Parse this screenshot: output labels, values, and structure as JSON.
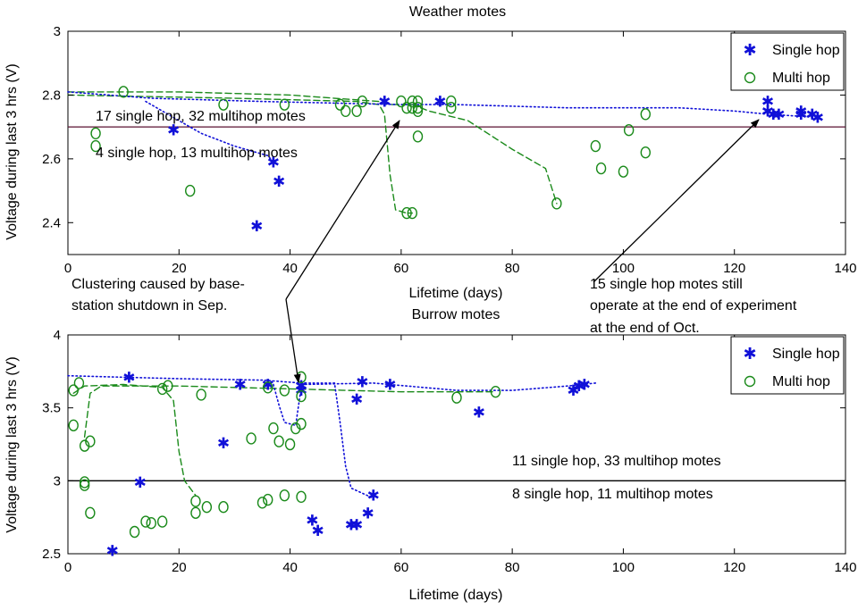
{
  "chart_data": [
    {
      "type": "scatter",
      "title": "Weather motes",
      "xlabel": "Lifetime (days)",
      "ylabel": "Voltage during last 3 hrs (V)",
      "xlim": [
        0,
        140
      ],
      "ylim": [
        2.3,
        3.0
      ],
      "xticks": [
        "0",
        "20",
        "40",
        "60",
        "80",
        "100",
        "120",
        "140"
      ],
      "yticks": [
        "2.4",
        "2.6",
        "2.8",
        "3"
      ],
      "threshold": 2.7,
      "legend": {
        "position": "top-right",
        "entries": [
          "Single hop",
          "Multi hop"
        ]
      },
      "series": [
        {
          "name": "Single hop",
          "marker": "star",
          "color": "#1010d8",
          "points": [
            [
              19,
              2.69
            ],
            [
              34,
              2.39
            ],
            [
              37,
              2.59
            ],
            [
              38,
              2.53
            ],
            [
              57,
              2.78
            ],
            [
              67,
              2.78
            ],
            [
              126,
              2.78
            ],
            [
              126,
              2.75
            ],
            [
              127,
              2.74
            ],
            [
              128,
              2.74
            ],
            [
              132,
              2.75
            ],
            [
              132,
              2.74
            ],
            [
              134,
              2.74
            ],
            [
              135,
              2.73
            ]
          ]
        },
        {
          "name": "Multi hop",
          "marker": "circle",
          "color": "#1a8a1a",
          "points": [
            [
              5,
              2.68
            ],
            [
              5,
              2.64
            ],
            [
              10,
              2.81
            ],
            [
              22,
              2.5
            ],
            [
              28,
              2.77
            ],
            [
              39,
              2.77
            ],
            [
              49,
              2.77
            ],
            [
              50,
              2.75
            ],
            [
              52,
              2.75
            ],
            [
              53,
              2.78
            ],
            [
              60,
              2.78
            ],
            [
              61,
              2.43
            ],
            [
              61,
              2.76
            ],
            [
              62,
              2.76
            ],
            [
              62,
              2.78
            ],
            [
              62,
              2.43
            ],
            [
              63,
              2.67
            ],
            [
              63,
              2.78
            ],
            [
              63,
              2.76
            ],
            [
              63,
              2.75
            ],
            [
              69,
              2.78
            ],
            [
              69,
              2.76
            ],
            [
              88,
              2.46
            ],
            [
              95,
              2.64
            ],
            [
              96,
              2.57
            ],
            [
              100,
              2.56
            ],
            [
              101,
              2.69
            ],
            [
              104,
              2.62
            ],
            [
              104,
              2.74
            ]
          ]
        }
      ],
      "traces": [
        {
          "style": "dash",
          "color": "#1a8a1a",
          "points": [
            [
              0,
              2.81
            ],
            [
              20,
              2.81
            ],
            [
              40,
              2.8
            ],
            [
              56,
              2.78
            ],
            [
              58,
              2.77
            ],
            [
              62,
              2.77
            ],
            [
              65,
              2.75
            ],
            [
              72,
              2.72
            ],
            [
              80,
              2.63
            ],
            [
              86,
              2.57
            ],
            [
              88,
              2.46
            ]
          ]
        },
        {
          "style": "dash",
          "color": "#1a8a1a",
          "points": [
            [
              0,
              2.8
            ],
            [
              30,
              2.79
            ],
            [
              52,
              2.78
            ],
            [
              56,
              2.77
            ],
            [
              57,
              2.74
            ],
            [
              58,
              2.55
            ],
            [
              59,
              2.44
            ],
            [
              61,
              2.43
            ],
            [
              62,
              2.43
            ]
          ]
        },
        {
          "style": "dot",
          "color": "#1010d8",
          "points": [
            [
              0,
              2.81
            ],
            [
              15,
              2.79
            ],
            [
              35,
              2.78
            ],
            [
              60,
              2.77
            ],
            [
              70,
              2.77
            ],
            [
              90,
              2.76
            ],
            [
              110,
              2.76
            ],
            [
              120,
              2.75
            ],
            [
              126,
              2.74
            ],
            [
              135,
              2.73
            ]
          ]
        },
        {
          "style": "dot",
          "color": "#1010d8",
          "points": [
            [
              14,
              2.78
            ],
            [
              18,
              2.74
            ],
            [
              24,
              2.68
            ],
            [
              30,
              2.64
            ],
            [
              36,
              2.61
            ],
            [
              37,
              2.59
            ]
          ]
        }
      ],
      "annotations": [
        {
          "text": "17 single hop, 32 multihop motes"
        },
        {
          "text": "4 single hop, 13 multihop motes"
        }
      ]
    },
    {
      "type": "scatter",
      "title": "Burrow motes",
      "xlabel": "Lifetime (days)",
      "ylabel": "Voltage during last 3 hrs (V)",
      "xlim": [
        0,
        140
      ],
      "ylim": [
        2.5,
        4.0
      ],
      "xticks": [
        "0",
        "20",
        "40",
        "60",
        "80",
        "100",
        "120",
        "140"
      ],
      "yticks": [
        "2.5",
        "3",
        "3.5",
        "4"
      ],
      "threshold": 3.0,
      "legend": {
        "position": "top-right",
        "entries": [
          "Single hop",
          "Multi hop"
        ]
      },
      "series": [
        {
          "name": "Single hop",
          "marker": "star",
          "color": "#1010d8",
          "points": [
            [
              8,
              2.52
            ],
            [
              11,
              3.71
            ],
            [
              13,
              2.99
            ],
            [
              28,
              3.26
            ],
            [
              31,
              3.66
            ],
            [
              36,
              3.66
            ],
            [
              42,
              3.65
            ],
            [
              42,
              3.62
            ],
            [
              44,
              2.73
            ],
            [
              45,
              2.66
            ],
            [
              51,
              2.7
            ],
            [
              52,
              2.7
            ],
            [
              52,
              3.56
            ],
            [
              53,
              3.68
            ],
            [
              54,
              2.78
            ],
            [
              55,
              2.9
            ],
            [
              58,
              3.66
            ],
            [
              74,
              3.47
            ],
            [
              91,
              3.62
            ],
            [
              92,
              3.65
            ],
            [
              93,
              3.66
            ]
          ]
        },
        {
          "name": "Multi hop",
          "marker": "circle",
          "color": "#1a8a1a",
          "points": [
            [
              1,
              3.38
            ],
            [
              1,
              3.62
            ],
            [
              2,
              3.67
            ],
            [
              3,
              3.24
            ],
            [
              3,
              2.99
            ],
            [
              3,
              2.97
            ],
            [
              4,
              3.27
            ],
            [
              4,
              2.78
            ],
            [
              12,
              2.65
            ],
            [
              14,
              2.72
            ],
            [
              15,
              2.71
            ],
            [
              17,
              2.72
            ],
            [
              17,
              3.63
            ],
            [
              18,
              3.65
            ],
            [
              23,
              2.86
            ],
            [
              23,
              2.78
            ],
            [
              24,
              3.59
            ],
            [
              25,
              2.82
            ],
            [
              28,
              2.82
            ],
            [
              33,
              3.29
            ],
            [
              35,
              2.85
            ],
            [
              36,
              2.87
            ],
            [
              36,
              3.64
            ],
            [
              37,
              3.36
            ],
            [
              38,
              3.27
            ],
            [
              39,
              2.9
            ],
            [
              39,
              3.62
            ],
            [
              40,
              3.25
            ],
            [
              41,
              3.36
            ],
            [
              42,
              2.89
            ],
            [
              42,
              3.39
            ],
            [
              42,
              3.71
            ],
            [
              42,
              3.58
            ],
            [
              70,
              3.57
            ],
            [
              77,
              3.61
            ]
          ]
        }
      ],
      "traces": [
        {
          "style": "dash",
          "color": "#1a8a1a",
          "points": [
            [
              1,
              3.6
            ],
            [
              3,
              3.65
            ],
            [
              10,
              3.66
            ],
            [
              17,
              3.64
            ],
            [
              19,
              3.55
            ],
            [
              20,
              3.2
            ],
            [
              21,
              3.0
            ],
            [
              23,
              2.9
            ]
          ]
        },
        {
          "style": "dash",
          "color": "#1a8a1a",
          "points": [
            [
              3,
              3.3
            ],
            [
              4,
              3.6
            ],
            [
              6,
              3.65
            ],
            [
              20,
              3.65
            ],
            [
              40,
              3.63
            ],
            [
              60,
              3.61
            ],
            [
              77,
              3.61
            ]
          ]
        },
        {
          "style": "dot",
          "color": "#1010d8",
          "points": [
            [
              0,
              3.72
            ],
            [
              20,
              3.7
            ],
            [
              35,
              3.69
            ],
            [
              42,
              3.67
            ],
            [
              48,
              3.67
            ],
            [
              49,
              3.4
            ],
            [
              50,
              3.1
            ],
            [
              51,
              2.95
            ],
            [
              55,
              2.88
            ]
          ]
        },
        {
          "style": "dot",
          "color": "#1010d8",
          "points": [
            [
              42,
              3.66
            ],
            [
              55,
              3.67
            ],
            [
              70,
              3.62
            ],
            [
              80,
              3.62
            ],
            [
              90,
              3.65
            ],
            [
              95,
              3.67
            ]
          ]
        },
        {
          "style": "dot",
          "color": "#1010d8",
          "points": [
            [
              37,
              3.66
            ],
            [
              38,
              3.52
            ],
            [
              39,
              3.4
            ],
            [
              41,
              3.38
            ],
            [
              42,
              3.64
            ]
          ]
        }
      ],
      "annotations": [
        {
          "text": "11 single hop, 33 multihop motes"
        },
        {
          "text": "8 single hop, 11 multihop motes"
        }
      ]
    }
  ],
  "callouts": {
    "clustering_line1": "Clustering caused by base-",
    "clustering_line2": "station shutdown in Sep.",
    "operate_line1": "15 single hop motes still",
    "operate_line2": "operate at the end of experiment",
    "operate_line3": "at the end of Oct."
  }
}
